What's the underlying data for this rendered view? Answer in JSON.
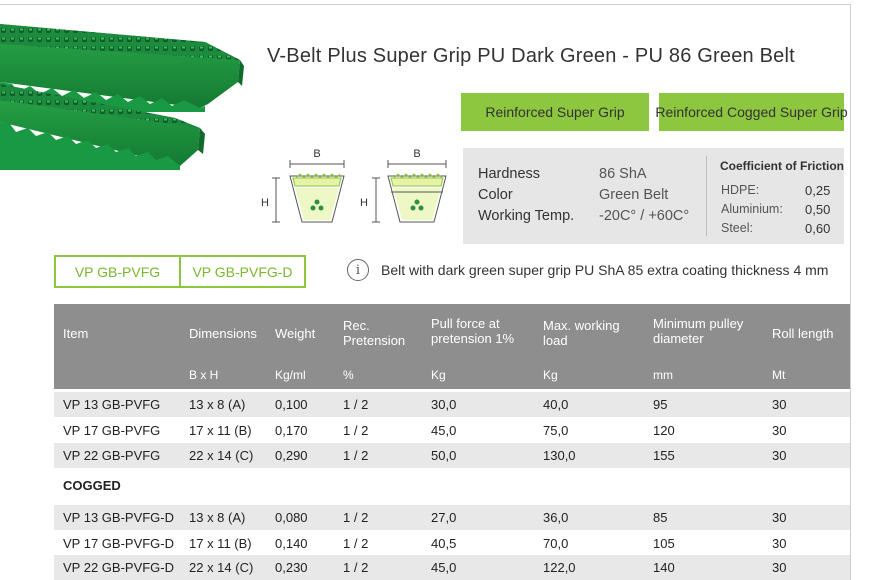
{
  "product": {
    "title": "V-Belt Plus Super Grip PU Dark Green - PU 86  Green Belt",
    "buttons": [
      "Reinforced Super Grip",
      "Reinforced Cogged Super Grip"
    ]
  },
  "diagram": {
    "label_b": "B",
    "label_h": "H"
  },
  "properties": {
    "rows": [
      {
        "label": "Hardness",
        "value": "86 ShA"
      },
      {
        "label": "Color",
        "value": "Green Belt"
      },
      {
        "label": "Working Temp.",
        "value": "-20C° / +60C°"
      }
    ],
    "friction": {
      "title": "Coefficient of Friction",
      "rows": [
        {
          "label": "HDPE:",
          "value": "0,25"
        },
        {
          "label": "Aluminium:",
          "value": "0,50"
        },
        {
          "label": "Steel:",
          "value": "0,60"
        }
      ]
    }
  },
  "codes": [
    "VP GB-PVFG",
    "VP GB-PVFG-D"
  ],
  "info": {
    "icon_glyph": "i",
    "text": "Belt with dark green super grip PU ShA 85 extra coating thickness 4 mm"
  },
  "table": {
    "headers": [
      "Item",
      "Dimensions",
      "Weight",
      "Rec.\nPretension",
      "Pull force at\npretension 1%",
      "Max. working\nload",
      "Minimum pulley\ndiameter",
      "Roll length"
    ],
    "units": [
      "",
      "B x H",
      "Kg/ml",
      "%",
      "Kg",
      "Kg",
      "mm",
      "Mt"
    ],
    "rows": [
      [
        "VP 13 GB-PVFG",
        "13 x 8 (A)",
        "0,100",
        "1 / 2",
        "30,0",
        "40,0",
        "95",
        "30"
      ],
      [
        "VP 17 GB-PVFG",
        "17 x 11 (B)",
        "0,170",
        "1 / 2",
        "45,0",
        "75,0",
        "120",
        "30"
      ],
      [
        "VP 22 GB-PVFG",
        "22 x 14 (C)",
        "0,290",
        "1 / 2",
        "50,0",
        "130,0",
        "155",
        "30"
      ]
    ],
    "section": "COGGED",
    "cogged_rows": [
      [
        "VP 13 GB-PVFG-D",
        "13 x 8 (A)",
        "0,080",
        "1 / 2",
        "27,0",
        "36,0",
        "85",
        "30"
      ],
      [
        "VP 17 GB-PVFG-D",
        "17 x 11 (B)",
        "0,140",
        "1 / 2",
        "40,5",
        "70,0",
        "105",
        "30"
      ],
      [
        "VP 22 GB-PVFG-D",
        "22 x 14 (C)",
        "0,230",
        "1 / 2",
        "45,0",
        "122,0",
        "140",
        "30"
      ]
    ]
  },
  "colors": {
    "accent_green": "#8dc63f",
    "belt_green": "#1f8f3d",
    "header_gray": "#8e8e8e",
    "row_alt_gray": "#e8e8e8"
  }
}
